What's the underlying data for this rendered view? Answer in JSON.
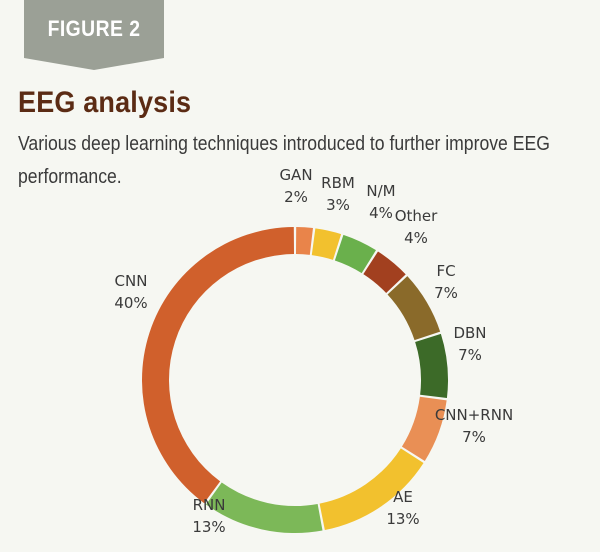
{
  "figure_label": "FIGURE 2",
  "title": "EEG analysis",
  "subtitle": "Various deep learning techniques introduced to further improve EEG performance.",
  "chart_data": {
    "type": "pie",
    "variant": "donut",
    "unit": "%",
    "categories": [
      "GAN",
      "RBM",
      "N/M",
      "Other",
      "FC",
      "DBN",
      "CNN+RNN",
      "AE",
      "RNN",
      "CNN"
    ],
    "values": [
      2,
      3,
      4,
      4,
      7,
      7,
      7,
      13,
      13,
      40
    ],
    "value_labels": [
      "2%",
      "3%",
      "4%",
      "4%",
      "7%",
      "7%",
      "7%",
      "13%",
      "13%",
      "40%"
    ],
    "colors": [
      "#e9844a",
      "#f2c12e",
      "#6ab04c",
      "#a2401f",
      "#8a6a2a",
      "#3c6a28",
      "#e98f55",
      "#f2c12e",
      "#7cb858",
      "#d0602c"
    ],
    "start_angle_deg": 0,
    "direction": "clockwise"
  }
}
